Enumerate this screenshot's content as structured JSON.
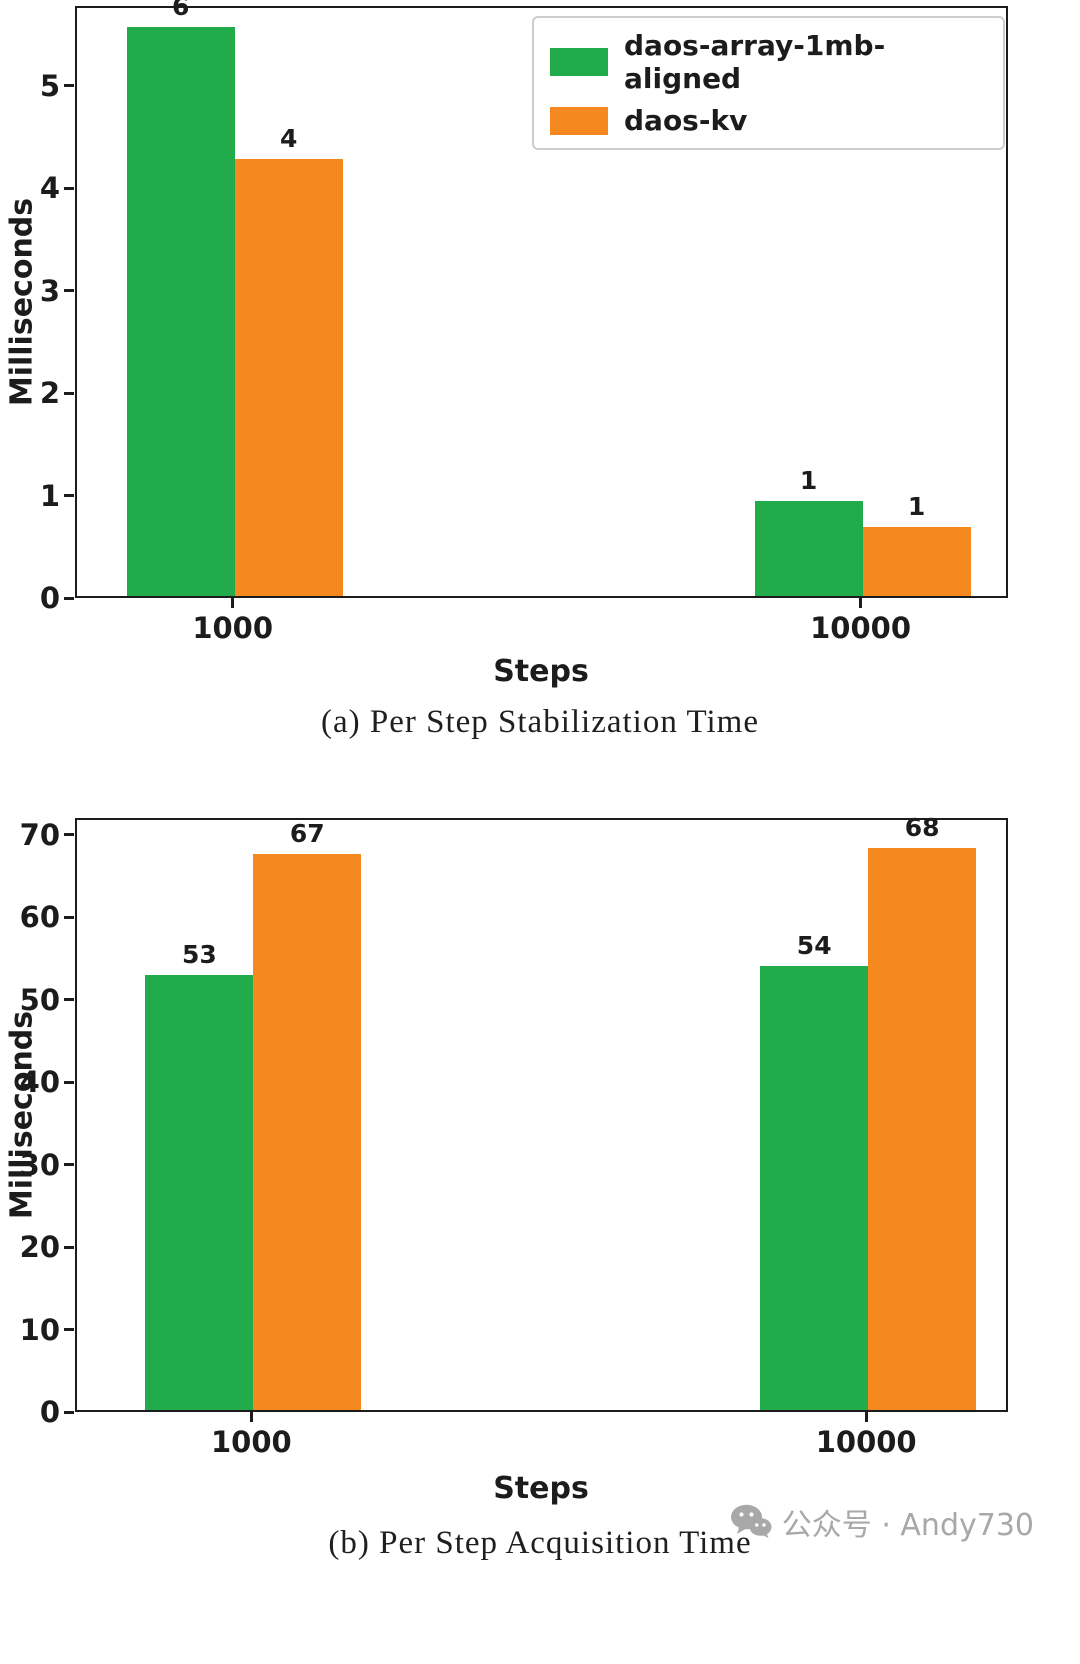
{
  "chart_data": [
    {
      "type": "bar",
      "caption": "(a) Per Step Stabilization Time",
      "categories": [
        "1000",
        "10000"
      ],
      "series": [
        {
          "name": "daos-array-1mb-aligned",
          "color": "#22ab4b",
          "values": [
            5.56,
            0.93
          ],
          "labels": [
            "6",
            "1"
          ]
        },
        {
          "name": "daos-kv",
          "color": "#f68820",
          "values": [
            4.27,
            0.67
          ],
          "labels": [
            "4",
            "1"
          ]
        }
      ],
      "title": "",
      "xlabel": "Steps",
      "ylabel": "Milliseconds",
      "ylim": [
        0,
        5.78
      ],
      "yticks": [
        0,
        1,
        2,
        3,
        4,
        5
      ],
      "grid": false,
      "legend": true,
      "legend_position": "upper right"
    },
    {
      "type": "bar",
      "caption": "(b) Per Step Acquisition Time",
      "categories": [
        "1000",
        "10000"
      ],
      "series": [
        {
          "name": "daos-array-1mb-aligned",
          "color": "#22ab4b",
          "values": [
            52.7,
            53.8
          ],
          "labels": [
            "53",
            "54"
          ]
        },
        {
          "name": "daos-kv",
          "color": "#f68820",
          "values": [
            67.4,
            68.1
          ],
          "labels": [
            "67",
            "68"
          ]
        }
      ],
      "title": "",
      "xlabel": "Steps",
      "ylabel": "Milliseconds",
      "ylim": [
        0,
        72
      ],
      "yticks": [
        0,
        10,
        20,
        30,
        40,
        50,
        60,
        70
      ],
      "grid": false,
      "legend": false,
      "legend_position": "none"
    }
  ],
  "watermark": {
    "icon": "wechat-icon",
    "text": "公众号 · Andy730",
    "color": "#a8a8a8"
  }
}
